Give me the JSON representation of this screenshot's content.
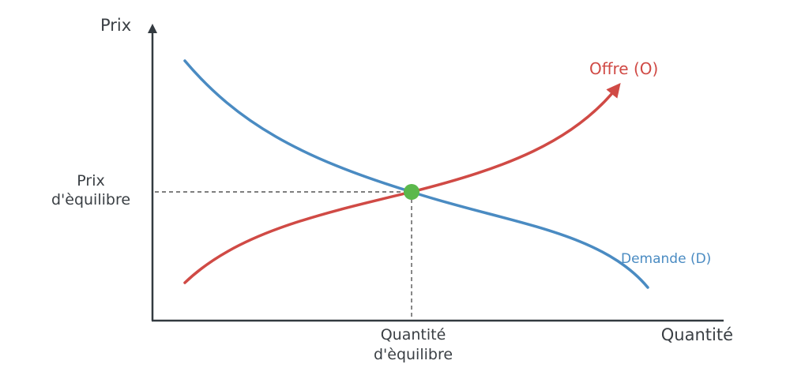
{
  "axes": {
    "y_label": "Prix",
    "x_label": "Quantité"
  },
  "equilibrium": {
    "price_label": [
      "Prix",
      "d'èquilibre"
    ],
    "quantity_label": [
      "Quantité",
      "d'èquilibre"
    ]
  },
  "curves": {
    "supply": {
      "label": "Offre (O)",
      "color": "#d04a45"
    },
    "demand": {
      "label": "Demande (D)",
      "color": "#4a8bc2"
    }
  },
  "colors": {
    "axis": "#333a40",
    "guide": "#555555",
    "point": "#5bb84c",
    "text": "#3a3f44"
  }
}
